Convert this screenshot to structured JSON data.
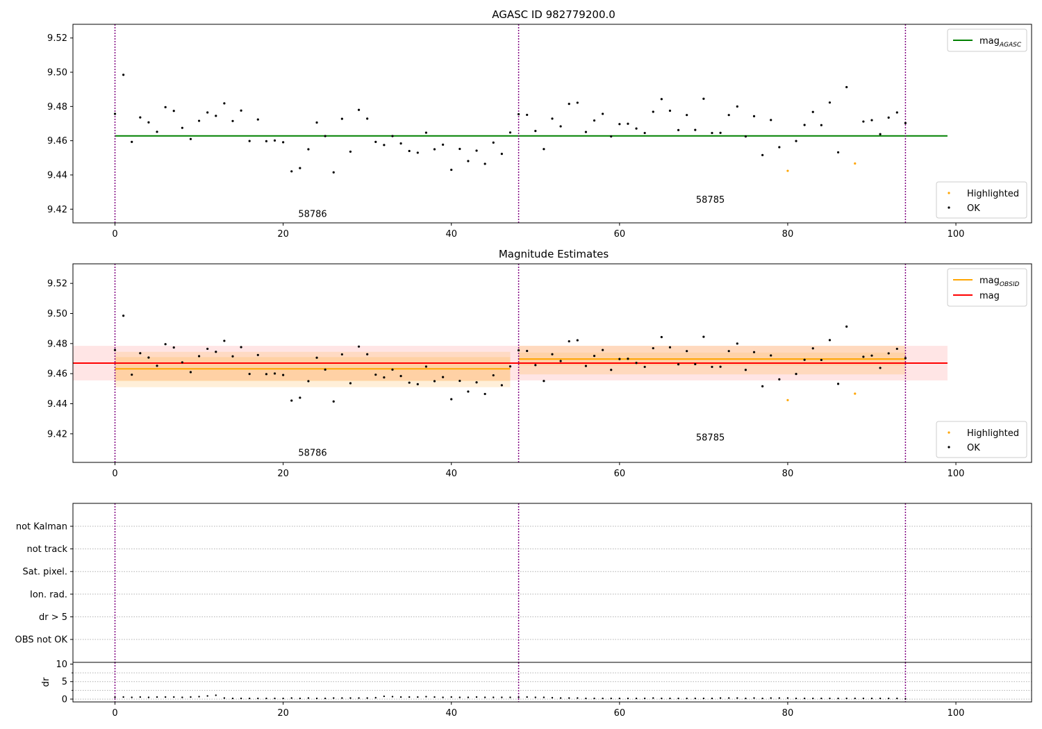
{
  "chart_data": [
    {
      "type": "scatter",
      "title": "AGASC ID 982779200.0",
      "xlim": [
        -5,
        109
      ],
      "ylim": [
        9.412,
        9.528
      ],
      "xticks": [
        0,
        20,
        40,
        60,
        80,
        100
      ],
      "yticks": [
        9.42,
        9.44,
        9.46,
        9.48,
        9.5,
        9.52
      ],
      "obsid_lines": [
        0,
        48,
        94
      ],
      "obsid_labels": [
        {
          "text": "58786",
          "x": 23.5,
          "y": 9.4155
        },
        {
          "text": "58785",
          "x": 70.8,
          "y": 9.4237
        }
      ],
      "lines": [
        {
          "name": "AGASC",
          "label_base": "mag",
          "label_sub": "AGASC",
          "color": "#008000",
          "y": 9.4628,
          "x": [
            0,
            99
          ]
        }
      ],
      "legend_lines": {
        "position": "top-right"
      },
      "legend_points": {
        "position": "bottom-right",
        "entries": [
          "Highlighted",
          "OK"
        ]
      }
    },
    {
      "type": "scatter",
      "title": "Magnitude Estimates",
      "xlim": [
        -5,
        109
      ],
      "ylim": [
        9.401,
        9.533
      ],
      "xticks": [
        0,
        20,
        40,
        60,
        80,
        100
      ],
      "yticks": [
        9.42,
        9.44,
        9.46,
        9.48,
        9.5,
        9.52
      ],
      "obsid_lines": [
        0,
        48,
        94
      ],
      "obsid_labels": [
        {
          "text": "58786",
          "x": 23.5,
          "y": 9.4055
        },
        {
          "text": "58785",
          "x": 70.8,
          "y": 9.4155
        }
      ],
      "bands": [
        {
          "x": [
            -5,
            99
          ],
          "y": [
            9.4555,
            9.4785
          ],
          "color": "#ff8a8a",
          "opacity": 0.22
        },
        {
          "x": [
            0,
            47
          ],
          "y": [
            9.451,
            9.4745
          ],
          "color": "#ffb74d",
          "opacity": 0.22
        },
        {
          "x": [
            0,
            47
          ],
          "y": [
            9.455,
            9.471
          ],
          "color": "#ffb74d",
          "opacity": 0.25
        },
        {
          "x": [
            48,
            94
          ],
          "y": [
            9.4595,
            9.4785
          ],
          "color": "#ffb74d",
          "opacity": 0.25
        },
        {
          "x": [
            48,
            94
          ],
          "y": [
            9.4655,
            9.474
          ],
          "color": "#ffb74d",
          "opacity": 0.2
        }
      ],
      "lines": [
        {
          "name": "OBSID 58786",
          "color": "#ffa500",
          "y": 9.4632,
          "x": [
            0,
            47
          ]
        },
        {
          "name": "OBSID 58785",
          "color": "#ffa500",
          "y": 9.4697,
          "x": [
            48,
            94
          ]
        },
        {
          "name": "mag",
          "color": "#ff0000",
          "y": 9.467,
          "x": [
            -5,
            99
          ]
        }
      ],
      "legend_lines": {
        "position": "top-right",
        "entries": [
          {
            "label_base": "mag",
            "label_sub": "OBSID",
            "color": "#ffa500"
          },
          {
            "label_base": "mag",
            "label_sub": "",
            "color": "#ff0000"
          }
        ]
      },
      "legend_points": {
        "position": "bottom-right",
        "entries": [
          "Highlighted",
          "OK"
        ]
      }
    },
    {
      "type": "scatter",
      "title": "",
      "xlim": [
        -5,
        109
      ],
      "flag_rows": [
        "OBS not OK",
        "dr > 5",
        "Ion. rad.",
        "Sat. pixel.",
        "not track",
        "not Kalman"
      ],
      "obsid_lines": [
        0,
        48,
        94
      ]
    },
    {
      "type": "scatter",
      "title": "",
      "xlim": [
        -5,
        109
      ],
      "ylim": [
        -0.8,
        10.5
      ],
      "xticks": [
        0,
        20,
        40,
        60,
        80,
        100
      ],
      "yticks": [
        0,
        5,
        10
      ],
      "ylabel": "dr",
      "obsid_lines": [
        0,
        48,
        94
      ],
      "dr_values": [
        0.5,
        0.6,
        0.5,
        0.6,
        0.5,
        0.6,
        0.6,
        0.6,
        0.5,
        0.6,
        0.7,
        0.9,
        1.1,
        0.3,
        0.2,
        0.2,
        0.2,
        0.2,
        0.2,
        0.2,
        0.2,
        0.3,
        0.2,
        0.3,
        0.2,
        0.2,
        0.3,
        0.3,
        0.3,
        0.3,
        0.3,
        0.4,
        0.8,
        0.7,
        0.6,
        0.6,
        0.6,
        0.7,
        0.6,
        0.5,
        0.6,
        0.5,
        0.5,
        0.6,
        0.5,
        0.5,
        0.5,
        0.5,
        0.5,
        0.6,
        0.5,
        0.5,
        0.4,
        0.3,
        0.3,
        0.3,
        0.2,
        0.2,
        0.2,
        0.2,
        0.2,
        0.2,
        0.2,
        0.2,
        0.3,
        0.2,
        0.2,
        0.2,
        0.2,
        0.2,
        0.2,
        0.2,
        0.3,
        0.3,
        0.3,
        0.2,
        0.3,
        0.2,
        0.3,
        0.3,
        0.3,
        0.2,
        0.2,
        0.2,
        0.2,
        0.2,
        0.2,
        0.2,
        0.2,
        0.2,
        0.2,
        0.2,
        0.2,
        0.2,
        0.1
      ]
    }
  ],
  "mag_values": [
    9.4757,
    9.4985,
    9.4593,
    9.4736,
    9.4707,
    9.4652,
    9.4796,
    9.4774,
    9.4675,
    9.461,
    9.4716,
    9.4765,
    9.4745,
    9.4818,
    9.4715,
    9.4776,
    9.4598,
    9.4724,
    9.4597,
    9.4601,
    9.4591,
    9.4421,
    9.444,
    9.455,
    9.4706,
    9.4627,
    9.4415,
    9.4728,
    9.4536,
    9.478,
    9.4729,
    9.4593,
    9.4575,
    9.4627,
    9.4584,
    9.454,
    9.453,
    9.4647,
    9.455,
    9.4577,
    9.443,
    9.4552,
    9.4481,
    9.4542,
    9.4465,
    9.4589,
    9.4523,
    9.4648,
    9.4755,
    9.4751,
    9.4657,
    9.4551,
    9.4729,
    9.4684,
    9.4815,
    9.4822,
    9.4651,
    9.4718,
    9.4757,
    9.4625,
    9.4697,
    9.4699,
    9.4671,
    9.4645,
    9.4769,
    9.4843,
    9.4775,
    9.4662,
    9.475,
    9.4663,
    9.4845,
    9.4645,
    9.4646,
    9.475,
    9.48,
    9.4625,
    9.4743,
    9.4516,
    9.4721,
    9.4562,
    9.4424,
    9.4598,
    9.4692,
    9.4768,
    9.4691,
    9.4823,
    9.4532,
    9.4913,
    9.4467,
    9.4712,
    9.472,
    9.4638,
    9.4735,
    9.4765,
    9.4703
  ],
  "highlighted_indices": [
    80,
    88
  ]
}
